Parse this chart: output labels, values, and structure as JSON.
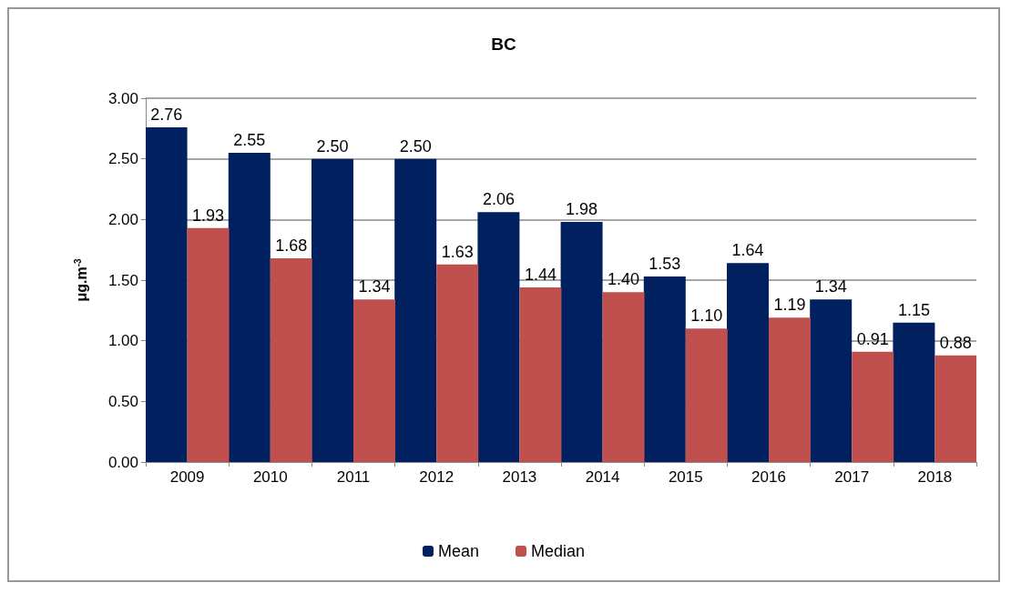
{
  "chart_data": {
    "type": "bar",
    "title": "BC",
    "ylabel": "μg.m$^{-3}$",
    "categories": [
      "2009",
      "2010",
      "2011",
      "2012",
      "2013",
      "2014",
      "2015",
      "2016",
      "2017",
      "2018"
    ],
    "series": [
      {
        "name": "Mean",
        "color": "#002060",
        "values": [
          2.76,
          2.55,
          2.5,
          2.5,
          2.06,
          1.98,
          1.53,
          1.64,
          1.34,
          1.15
        ],
        "value_labels": [
          "2.76",
          "2.55",
          "2.50",
          "2.50",
          "2.06",
          "1.98",
          "1.53",
          "1.64",
          "1.34",
          "1.15"
        ]
      },
      {
        "name": "Median",
        "color": "#c0504d",
        "values": [
          1.93,
          1.68,
          1.34,
          1.63,
          1.44,
          1.4,
          1.1,
          1.19,
          0.91,
          0.88
        ],
        "value_labels": [
          "1.93",
          "1.68",
          "1.34",
          "1.63",
          "1.44",
          "1.40",
          "1.10",
          "1.19",
          "0.91",
          "0.88"
        ]
      }
    ],
    "ylim": [
      0,
      3
    ],
    "yticks": [
      {
        "value": 0,
        "label": "0.00"
      },
      {
        "value": 0.5,
        "label": "0.50"
      },
      {
        "value": 1,
        "label": "1.00"
      },
      {
        "value": 1.5,
        "label": "1.50"
      },
      {
        "value": 2,
        "label": "2.00"
      },
      {
        "value": 2.5,
        "label": "2.50"
      },
      {
        "value": 3,
        "label": "3.00"
      }
    ],
    "grid": "y",
    "legend": "bottom"
  }
}
